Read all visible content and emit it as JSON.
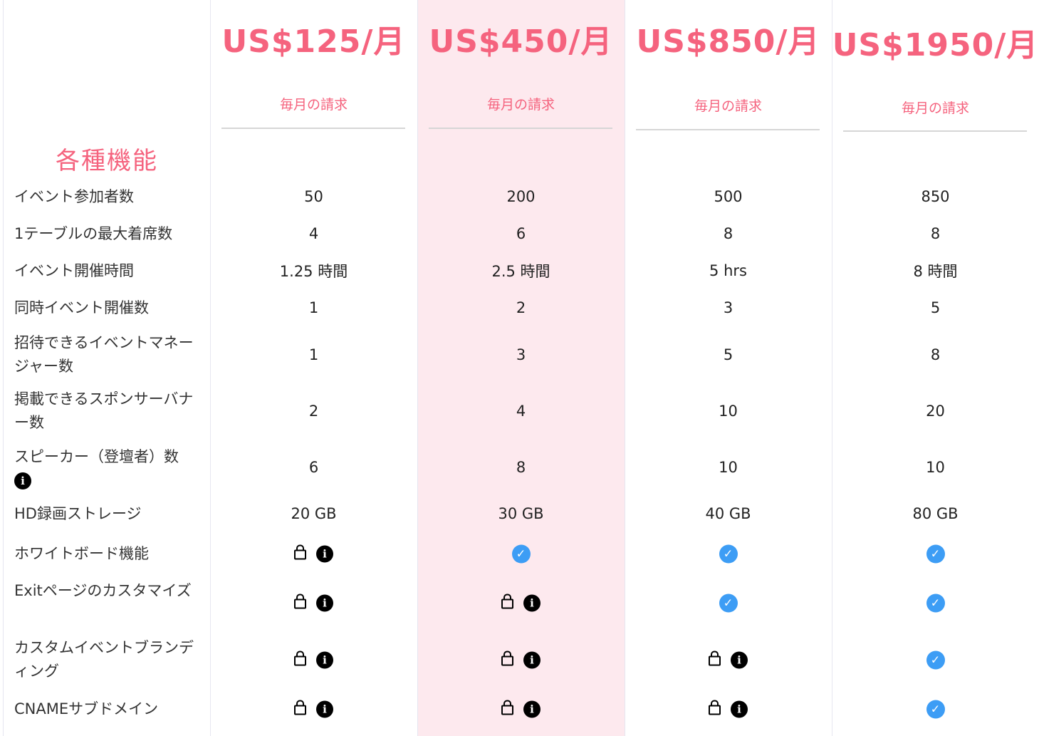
{
  "accent_color": "#f5637e",
  "check_color": "#3d9df5",
  "highlight_color": "#fde9ee",
  "features_title": "各種機能",
  "plans": [
    {
      "price": "US$125/月",
      "billing": "毎月の請求"
    },
    {
      "price": "US$450/月",
      "billing": "毎月の請求"
    },
    {
      "price": "US$850/月",
      "billing": "毎月の請求"
    },
    {
      "price": "US$1950/月",
      "billing": "毎月の請求"
    }
  ],
  "rows": [
    {
      "label": "イベント参加者数",
      "values": [
        "50",
        "200",
        "500",
        "850"
      ]
    },
    {
      "label": "1テーブルの最大着席数",
      "values": [
        "4",
        "6",
        "8",
        "8"
      ]
    },
    {
      "label": "イベント開催時間",
      "values": [
        "1.25 時間",
        "2.5 時間",
        "5 hrs",
        "8 時間"
      ]
    },
    {
      "label": "同時イベント開催数",
      "values": [
        "1",
        "2",
        "3",
        "5"
      ]
    },
    {
      "label": "招待できるイベントマネージャー数",
      "values": [
        "1",
        "3",
        "5",
        "8"
      ]
    },
    {
      "label": "掲載できるスポンサーバナー数",
      "values": [
        "2",
        "4",
        "10",
        "20"
      ]
    },
    {
      "label": "スピーカー（登壇者）数",
      "info": true,
      "values": [
        "6",
        "8",
        "10",
        "10"
      ]
    },
    {
      "label": "HD録画ストレージ",
      "values": [
        "20 GB",
        "30 GB",
        "40 GB",
        "80 GB"
      ]
    },
    {
      "label": "ホワイトボード機能",
      "values": [
        "locked",
        "included",
        "included",
        "included"
      ]
    },
    {
      "label": "Exitページのカスタマイズ",
      "values": [
        "locked",
        "locked",
        "included",
        "included"
      ]
    },
    {
      "label": "カスタムイベントブランディング",
      "values": [
        "locked",
        "locked",
        "locked",
        "included"
      ]
    },
    {
      "label": "CNAMEサブドメイン",
      "values": [
        "locked",
        "locked",
        "locked",
        "included"
      ]
    }
  ]
}
